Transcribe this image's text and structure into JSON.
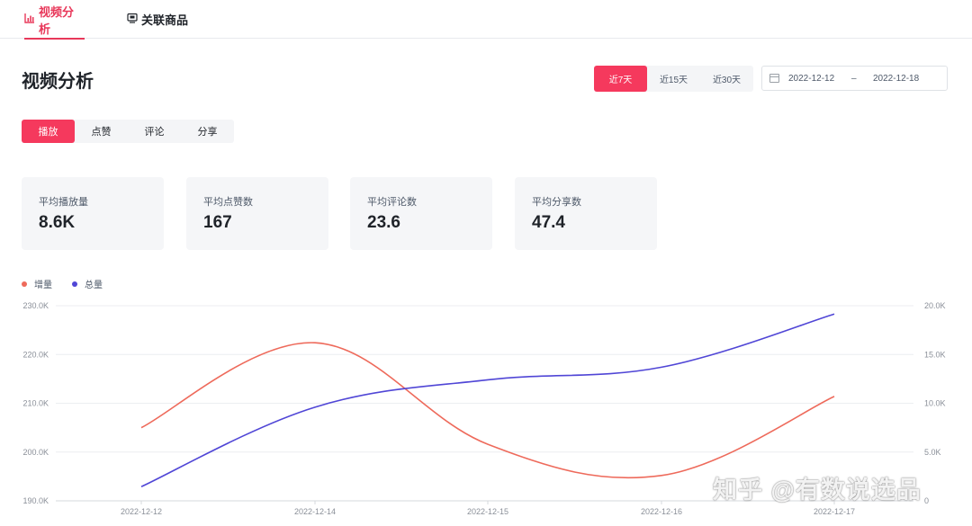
{
  "top_tabs": [
    {
      "icon": "bar-chart-icon",
      "label": "视频分析",
      "active": true
    },
    {
      "icon": "product-icon",
      "label": "关联商品",
      "active": false
    }
  ],
  "page_title": "视频分析",
  "range": {
    "options": [
      "近7天",
      "近15天",
      "近30天"
    ],
    "active_index": 0
  },
  "date_range": {
    "start": "2022-12-12",
    "separator": "–",
    "end": "2022-12-18"
  },
  "metric_tabs": {
    "options": [
      "播放",
      "点赞",
      "评论",
      "分享"
    ],
    "active_index": 0
  },
  "cards": [
    {
      "label": "平均播放量",
      "value": "8.6K"
    },
    {
      "label": "平均点赞数",
      "value": "167"
    },
    {
      "label": "平均评论数",
      "value": "23.6"
    },
    {
      "label": "平均分享数",
      "value": "47.4"
    }
  ],
  "colors": {
    "accent": "#f5395d",
    "increase": "#ee6a5b",
    "total": "#5046d6"
  },
  "chart_data": {
    "type": "line",
    "categories": [
      "2022-12-12",
      "2022-12-14",
      "2022-12-15",
      "2022-12-16",
      "2022-12-17"
    ],
    "series": [
      {
        "name": "增量",
        "axis": "right",
        "color": "#ee6a5b",
        "values": [
          7.5,
          16.2,
          5.8,
          2.6,
          10.7
        ]
      },
      {
        "name": "总量",
        "axis": "left",
        "color": "#5046d6",
        "values": [
          192900,
          209200,
          214800,
          217400,
          228300
        ]
      }
    ],
    "left_axis": {
      "ylim": [
        190000,
        230000
      ],
      "ticks": [
        "190.0K",
        "200.0K",
        "210.0K",
        "220.0K",
        "230.0K"
      ]
    },
    "right_axis": {
      "ylim": [
        0,
        20
      ],
      "ticks": [
        "0",
        "5.0K",
        "10.0K",
        "15.0K",
        "20.0K"
      ]
    },
    "grid": true,
    "legend_position": "top-left"
  },
  "watermark": "知乎 @有数说选品"
}
